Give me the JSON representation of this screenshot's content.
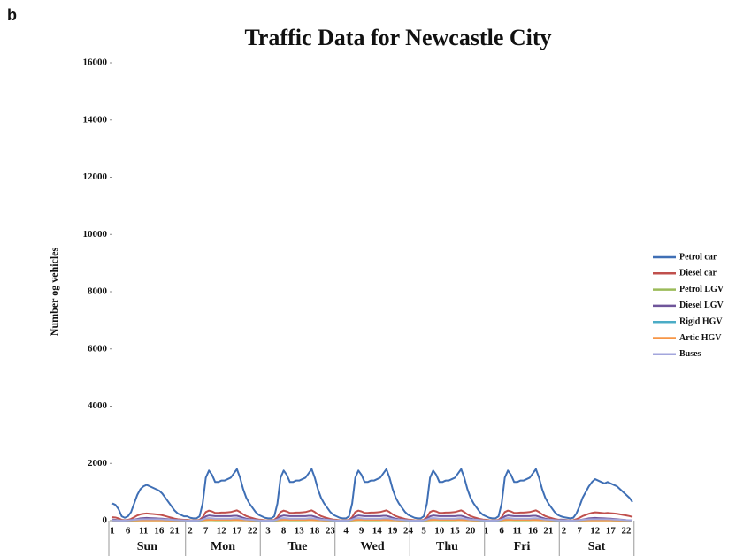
{
  "chart_data": {
    "type": "line",
    "panel_label": "b",
    "title": "Traffic Data for Newcastle City",
    "y_label": "Number og vehicles",
    "ylim": [
      0,
      16000
    ],
    "yticks": [
      0,
      2000,
      4000,
      6000,
      8000,
      10000,
      12000,
      14000,
      16000
    ],
    "days": [
      "Sun",
      "Mon",
      "Tue",
      "Wed",
      "Thu",
      "Fri",
      "Sat"
    ],
    "categories": [
      "1",
      null,
      null,
      null,
      null,
      "6",
      null,
      null,
      null,
      null,
      "11",
      null,
      null,
      null,
      null,
      "16",
      null,
      null,
      null,
      null,
      "21",
      null,
      null,
      null,
      null,
      "2",
      null,
      null,
      null,
      null,
      "7",
      null,
      null,
      null,
      null,
      "12",
      null,
      null,
      null,
      null,
      "17",
      null,
      null,
      null,
      null,
      "22",
      null,
      null,
      null,
      null,
      "3",
      null,
      null,
      null,
      null,
      "8",
      null,
      null,
      null,
      null,
      "13",
      null,
      null,
      null,
      null,
      "18",
      null,
      null,
      null,
      null,
      "23",
      null,
      null,
      null,
      null,
      "4",
      null,
      null,
      null,
      null,
      "9",
      null,
      null,
      null,
      null,
      "14",
      null,
      null,
      null,
      null,
      "19",
      null,
      null,
      null,
      null,
      "24",
      null,
      null,
      null,
      null,
      "5",
      null,
      null,
      null,
      null,
      "10",
      null,
      null,
      null,
      null,
      "15",
      null,
      null,
      null,
      null,
      "20",
      null,
      null,
      null,
      null,
      "1",
      null,
      null,
      null,
      null,
      "6",
      null,
      null,
      null,
      null,
      "11",
      null,
      null,
      null,
      null,
      "16",
      null,
      null,
      null,
      null,
      "21",
      null,
      null,
      null,
      null,
      "2",
      null,
      null,
      null,
      null,
      "7",
      null,
      null,
      null,
      null,
      "12",
      null,
      null,
      null,
      null,
      "17",
      null,
      null,
      null,
      null,
      "22",
      null,
      null
    ],
    "series": [
      {
        "name": "Petrol car",
        "color": "#3f6fb5",
        "values": [
          600,
          550,
          400,
          150,
          100,
          150,
          300,
          600,
          900,
          1100,
          1200,
          1250,
          1200,
          1150,
          1100,
          1050,
          950,
          800,
          650,
          500,
          350,
          250,
          200,
          150,
          150,
          100,
          80,
          80,
          150,
          600,
          1500,
          1750,
          1600,
          1350,
          1350,
          1400,
          1400,
          1450,
          1500,
          1650,
          1800,
          1500,
          1100,
          800,
          600,
          450,
          300,
          200,
          150,
          100,
          80,
          80,
          150,
          600,
          1500,
          1750,
          1600,
          1350,
          1350,
          1400,
          1400,
          1450,
          1500,
          1650,
          1800,
          1500,
          1100,
          800,
          600,
          450,
          300,
          200,
          150,
          100,
          80,
          80,
          150,
          600,
          1500,
          1750,
          1600,
          1350,
          1350,
          1400,
          1400,
          1450,
          1500,
          1650,
          1800,
          1500,
          1100,
          800,
          600,
          450,
          300,
          200,
          150,
          100,
          80,
          80,
          150,
          600,
          1500,
          1750,
          1600,
          1350,
          1350,
          1400,
          1400,
          1450,
          1500,
          1650,
          1800,
          1500,
          1100,
          800,
          600,
          450,
          300,
          200,
          150,
          100,
          80,
          80,
          150,
          600,
          1500,
          1750,
          1600,
          1350,
          1350,
          1400,
          1400,
          1450,
          1500,
          1650,
          1800,
          1500,
          1100,
          800,
          600,
          450,
          300,
          200,
          150,
          120,
          100,
          80,
          100,
          250,
          500,
          800,
          1000,
          1200,
          1350,
          1450,
          1400,
          1350,
          1300,
          1350,
          1300,
          1250,
          1200,
          1100,
          1000,
          900,
          800,
          650
        ]
      },
      {
        "name": "Diesel car",
        "color": "#c0504d",
        "values": [
          120,
          110,
          80,
          30,
          20,
          30,
          60,
          120,
          180,
          220,
          240,
          250,
          240,
          230,
          220,
          210,
          190,
          160,
          130,
          100,
          70,
          50,
          40,
          30,
          30,
          20,
          16,
          16,
          30,
          120,
          300,
          350,
          320,
          270,
          270,
          280,
          280,
          290,
          300,
          330,
          360,
          300,
          220,
          160,
          120,
          90,
          60,
          40,
          30,
          20,
          16,
          16,
          30,
          120,
          300,
          350,
          320,
          270,
          270,
          280,
          280,
          290,
          300,
          330,
          360,
          300,
          220,
          160,
          120,
          90,
          60,
          40,
          30,
          20,
          16,
          16,
          30,
          120,
          300,
          350,
          320,
          270,
          270,
          280,
          280,
          290,
          300,
          330,
          360,
          300,
          220,
          160,
          120,
          90,
          60,
          40,
          30,
          20,
          16,
          16,
          30,
          120,
          300,
          350,
          320,
          270,
          270,
          280,
          280,
          290,
          300,
          330,
          360,
          300,
          220,
          160,
          120,
          90,
          60,
          40,
          30,
          20,
          16,
          16,
          30,
          120,
          300,
          350,
          320,
          270,
          270,
          280,
          280,
          290,
          300,
          330,
          360,
          300,
          220,
          160,
          120,
          90,
          60,
          40,
          30,
          24,
          20,
          16,
          20,
          50,
          100,
          160,
          200,
          240,
          270,
          290,
          280,
          270,
          260,
          270,
          260,
          250,
          240,
          220,
          200,
          180,
          160,
          130
        ]
      },
      {
        "name": "Petrol LGV",
        "color": "#9bbb59",
        "values": [
          3,
          2,
          2,
          1,
          1,
          1,
          2,
          3,
          5,
          6,
          7,
          8,
          7,
          7,
          7,
          6,
          6,
          5,
          4,
          3,
          2,
          2,
          1,
          1,
          1,
          1,
          1,
          1,
          2,
          5,
          12,
          15,
          14,
          13,
          13,
          13,
          13,
          13,
          13,
          14,
          14,
          12,
          8,
          6,
          4,
          3,
          2,
          1,
          1,
          1,
          1,
          1,
          2,
          5,
          12,
          15,
          14,
          13,
          13,
          13,
          13,
          13,
          13,
          14,
          14,
          12,
          8,
          6,
          4,
          3,
          2,
          1,
          1,
          1,
          1,
          1,
          2,
          5,
          12,
          15,
          14,
          13,
          13,
          13,
          13,
          13,
          13,
          14,
          14,
          12,
          8,
          6,
          4,
          3,
          2,
          1,
          1,
          1,
          1,
          1,
          2,
          5,
          12,
          15,
          14,
          13,
          13,
          13,
          13,
          13,
          13,
          14,
          14,
          12,
          8,
          6,
          4,
          3,
          2,
          1,
          1,
          1,
          1,
          1,
          2,
          5,
          12,
          15,
          14,
          13,
          13,
          13,
          13,
          13,
          13,
          14,
          14,
          12,
          8,
          6,
          4,
          3,
          2,
          1,
          3,
          2,
          2,
          1,
          1,
          1,
          2,
          3,
          5,
          6,
          7,
          8,
          7,
          7,
          7,
          6,
          6,
          5,
          4,
          3,
          2,
          2,
          1,
          1
        ]
      },
      {
        "name": "Diesel LGV",
        "color": "#6f559a",
        "values": [
          40,
          30,
          20,
          10,
          8,
          10,
          20,
          40,
          60,
          80,
          90,
          95,
          90,
          85,
          80,
          75,
          70,
          60,
          50,
          40,
          30,
          20,
          15,
          10,
          10,
          8,
          6,
          6,
          15,
          60,
          150,
          180,
          170,
          160,
          160,
          160,
          160,
          160,
          160,
          170,
          170,
          140,
          100,
          70,
          50,
          40,
          25,
          15,
          10,
          8,
          6,
          6,
          15,
          60,
          150,
          180,
          170,
          160,
          160,
          160,
          160,
          160,
          160,
          170,
          170,
          140,
          100,
          70,
          50,
          40,
          25,
          15,
          10,
          8,
          6,
          6,
          15,
          60,
          150,
          180,
          170,
          160,
          160,
          160,
          160,
          160,
          160,
          170,
          170,
          140,
          100,
          70,
          50,
          40,
          25,
          15,
          10,
          8,
          6,
          6,
          15,
          60,
          150,
          180,
          170,
          160,
          160,
          160,
          160,
          160,
          160,
          170,
          170,
          140,
          100,
          70,
          50,
          40,
          25,
          15,
          10,
          8,
          6,
          6,
          15,
          60,
          150,
          180,
          170,
          160,
          160,
          160,
          160,
          160,
          160,
          170,
          170,
          140,
          100,
          70,
          50,
          40,
          25,
          15,
          40,
          30,
          20,
          10,
          8,
          10,
          20,
          40,
          60,
          80,
          90,
          95,
          90,
          85,
          80,
          75,
          70,
          60,
          50,
          40,
          30,
          20,
          15,
          10
        ]
      },
      {
        "name": "Rigid HGV",
        "color": "#4bacc6",
        "values": [
          5,
          4,
          4,
          3,
          3,
          4,
          6,
          10,
          15,
          20,
          22,
          24,
          22,
          20,
          18,
          16,
          14,
          12,
          10,
          8,
          7,
          6,
          5,
          5,
          5,
          5,
          5,
          5,
          10,
          25,
          45,
          55,
          60,
          60,
          60,
          60,
          60,
          60,
          55,
          50,
          45,
          35,
          25,
          15,
          10,
          8,
          6,
          5,
          5,
          5,
          5,
          5,
          10,
          25,
          45,
          55,
          60,
          60,
          60,
          60,
          60,
          60,
          55,
          50,
          45,
          35,
          25,
          15,
          10,
          8,
          6,
          5,
          5,
          5,
          5,
          5,
          10,
          25,
          45,
          55,
          60,
          60,
          60,
          60,
          60,
          60,
          55,
          50,
          45,
          35,
          25,
          15,
          10,
          8,
          6,
          5,
          5,
          5,
          5,
          5,
          10,
          25,
          45,
          55,
          60,
          60,
          60,
          60,
          60,
          60,
          55,
          50,
          45,
          35,
          25,
          15,
          10,
          8,
          6,
          5,
          5,
          5,
          5,
          5,
          10,
          25,
          45,
          55,
          60,
          60,
          60,
          60,
          60,
          60,
          55,
          50,
          45,
          35,
          25,
          15,
          10,
          8,
          6,
          5,
          5,
          4,
          4,
          3,
          3,
          4,
          6,
          10,
          15,
          20,
          22,
          24,
          22,
          20,
          18,
          16,
          14,
          12,
          10,
          8,
          7,
          6,
          5,
          5
        ]
      },
      {
        "name": "Artic HGV",
        "color": "#f79646",
        "values": [
          8,
          8,
          7,
          7,
          7,
          8,
          9,
          10,
          11,
          12,
          12,
          12,
          12,
          12,
          11,
          11,
          10,
          10,
          9,
          9,
          8,
          8,
          8,
          8,
          10,
          10,
          10,
          10,
          15,
          20,
          25,
          30,
          30,
          30,
          30,
          30,
          30,
          30,
          28,
          26,
          24,
          20,
          18,
          15,
          12,
          10,
          10,
          10,
          10,
          10,
          10,
          10,
          15,
          20,
          25,
          30,
          30,
          30,
          30,
          30,
          30,
          30,
          28,
          26,
          24,
          20,
          18,
          15,
          12,
          10,
          10,
          10,
          10,
          10,
          10,
          10,
          15,
          20,
          25,
          30,
          30,
          30,
          30,
          30,
          30,
          30,
          28,
          26,
          24,
          20,
          18,
          15,
          12,
          10,
          10,
          10,
          10,
          10,
          10,
          10,
          15,
          20,
          25,
          30,
          30,
          30,
          30,
          30,
          30,
          30,
          28,
          26,
          24,
          20,
          18,
          15,
          12,
          10,
          10,
          10,
          10,
          10,
          10,
          10,
          15,
          20,
          25,
          30,
          30,
          30,
          30,
          30,
          30,
          30,
          28,
          26,
          24,
          20,
          18,
          15,
          12,
          10,
          10,
          10,
          8,
          8,
          7,
          7,
          7,
          8,
          9,
          10,
          11,
          12,
          12,
          12,
          12,
          12,
          11,
          11,
          10,
          10,
          9,
          9,
          8,
          8,
          8,
          8
        ]
      },
      {
        "name": "Buses",
        "color": "#a3a6dc",
        "values": [
          10,
          8,
          5,
          3,
          3,
          10,
          20,
          30,
          40,
          45,
          50,
          50,
          50,
          50,
          50,
          50,
          45,
          40,
          35,
          30,
          25,
          20,
          15,
          10,
          5,
          3,
          3,
          3,
          10,
          40,
          80,
          90,
          80,
          70,
          70,
          70,
          70,
          70,
          70,
          80,
          85,
          75,
          55,
          40,
          35,
          30,
          20,
          10,
          5,
          3,
          3,
          3,
          10,
          40,
          80,
          90,
          80,
          70,
          70,
          70,
          70,
          70,
          70,
          80,
          85,
          75,
          55,
          40,
          35,
          30,
          20,
          10,
          5,
          3,
          3,
          3,
          10,
          40,
          80,
          90,
          80,
          70,
          70,
          70,
          70,
          70,
          70,
          80,
          85,
          75,
          55,
          40,
          35,
          30,
          20,
          10,
          5,
          3,
          3,
          3,
          10,
          40,
          80,
          90,
          80,
          70,
          70,
          70,
          70,
          70,
          70,
          80,
          85,
          75,
          55,
          40,
          35,
          30,
          20,
          10,
          5,
          3,
          3,
          3,
          10,
          40,
          80,
          90,
          80,
          70,
          70,
          70,
          70,
          70,
          70,
          80,
          85,
          75,
          55,
          40,
          35,
          30,
          20,
          10,
          10,
          8,
          5,
          3,
          3,
          10,
          20,
          30,
          40,
          45,
          50,
          50,
          50,
          50,
          50,
          50,
          45,
          40,
          35,
          30,
          25,
          20,
          15,
          10
        ]
      }
    ]
  }
}
